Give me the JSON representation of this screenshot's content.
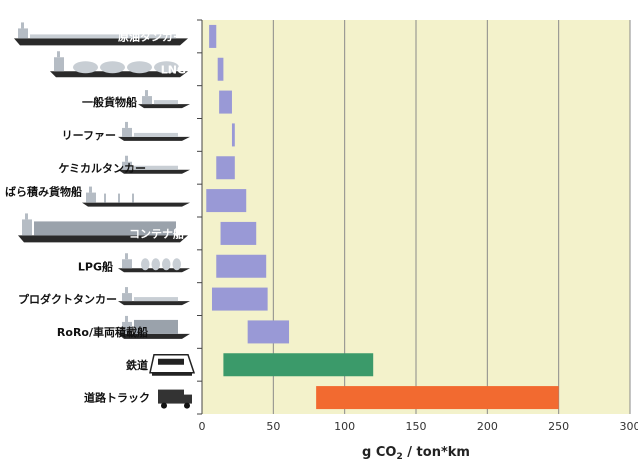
{
  "chart_data": {
    "type": "bar",
    "orientation": "horizontal",
    "floating_bars": true,
    "categories": [
      "原油タンカー",
      "LNG",
      "一般貨物船",
      "リーファー",
      "ケミカルタンカー",
      "ばら積み貨物船",
      "コンテナ船",
      "LPG船",
      "プロダクトタンカー",
      "RoRo/車両積載船",
      "鉄道",
      "道路トラック"
    ],
    "ranges": [
      [
        5,
        10
      ],
      [
        11,
        15
      ],
      [
        12,
        21
      ],
      [
        21,
        23
      ],
      [
        10,
        23
      ],
      [
        3,
        31
      ],
      [
        13,
        38
      ],
      [
        10,
        45
      ],
      [
        7,
        46
      ],
      [
        32,
        61
      ],
      [
        15,
        120
      ],
      [
        80,
        250
      ]
    ],
    "bar_colors": [
      "#9999d6",
      "#9999d6",
      "#9999d6",
      "#9999d6",
      "#9999d6",
      "#9999d6",
      "#9999d6",
      "#9999d6",
      "#9999d6",
      "#9999d6",
      "#3b9a6a",
      "#f26a30"
    ],
    "xlim": [
      0,
      300
    ],
    "xticks": [
      "0",
      "50",
      "100",
      "150",
      "200",
      "250",
      "300"
    ],
    "xlabel": "g CO",
    "xlabel_sub": "2",
    "xlabel_suffix": " / ton*km",
    "grid": "vertical",
    "plot_background": "#f3f2cb",
    "icons": [
      "crude-tanker-icon",
      "lng-carrier-icon",
      "general-cargo-ship-icon",
      "reefer-ship-icon",
      "chemical-tanker-icon",
      "bulk-carrier-icon",
      "container-ship-icon",
      "lpg-carrier-icon",
      "product-tanker-icon",
      "roro-ship-icon",
      "train-icon",
      "truck-icon"
    ]
  }
}
